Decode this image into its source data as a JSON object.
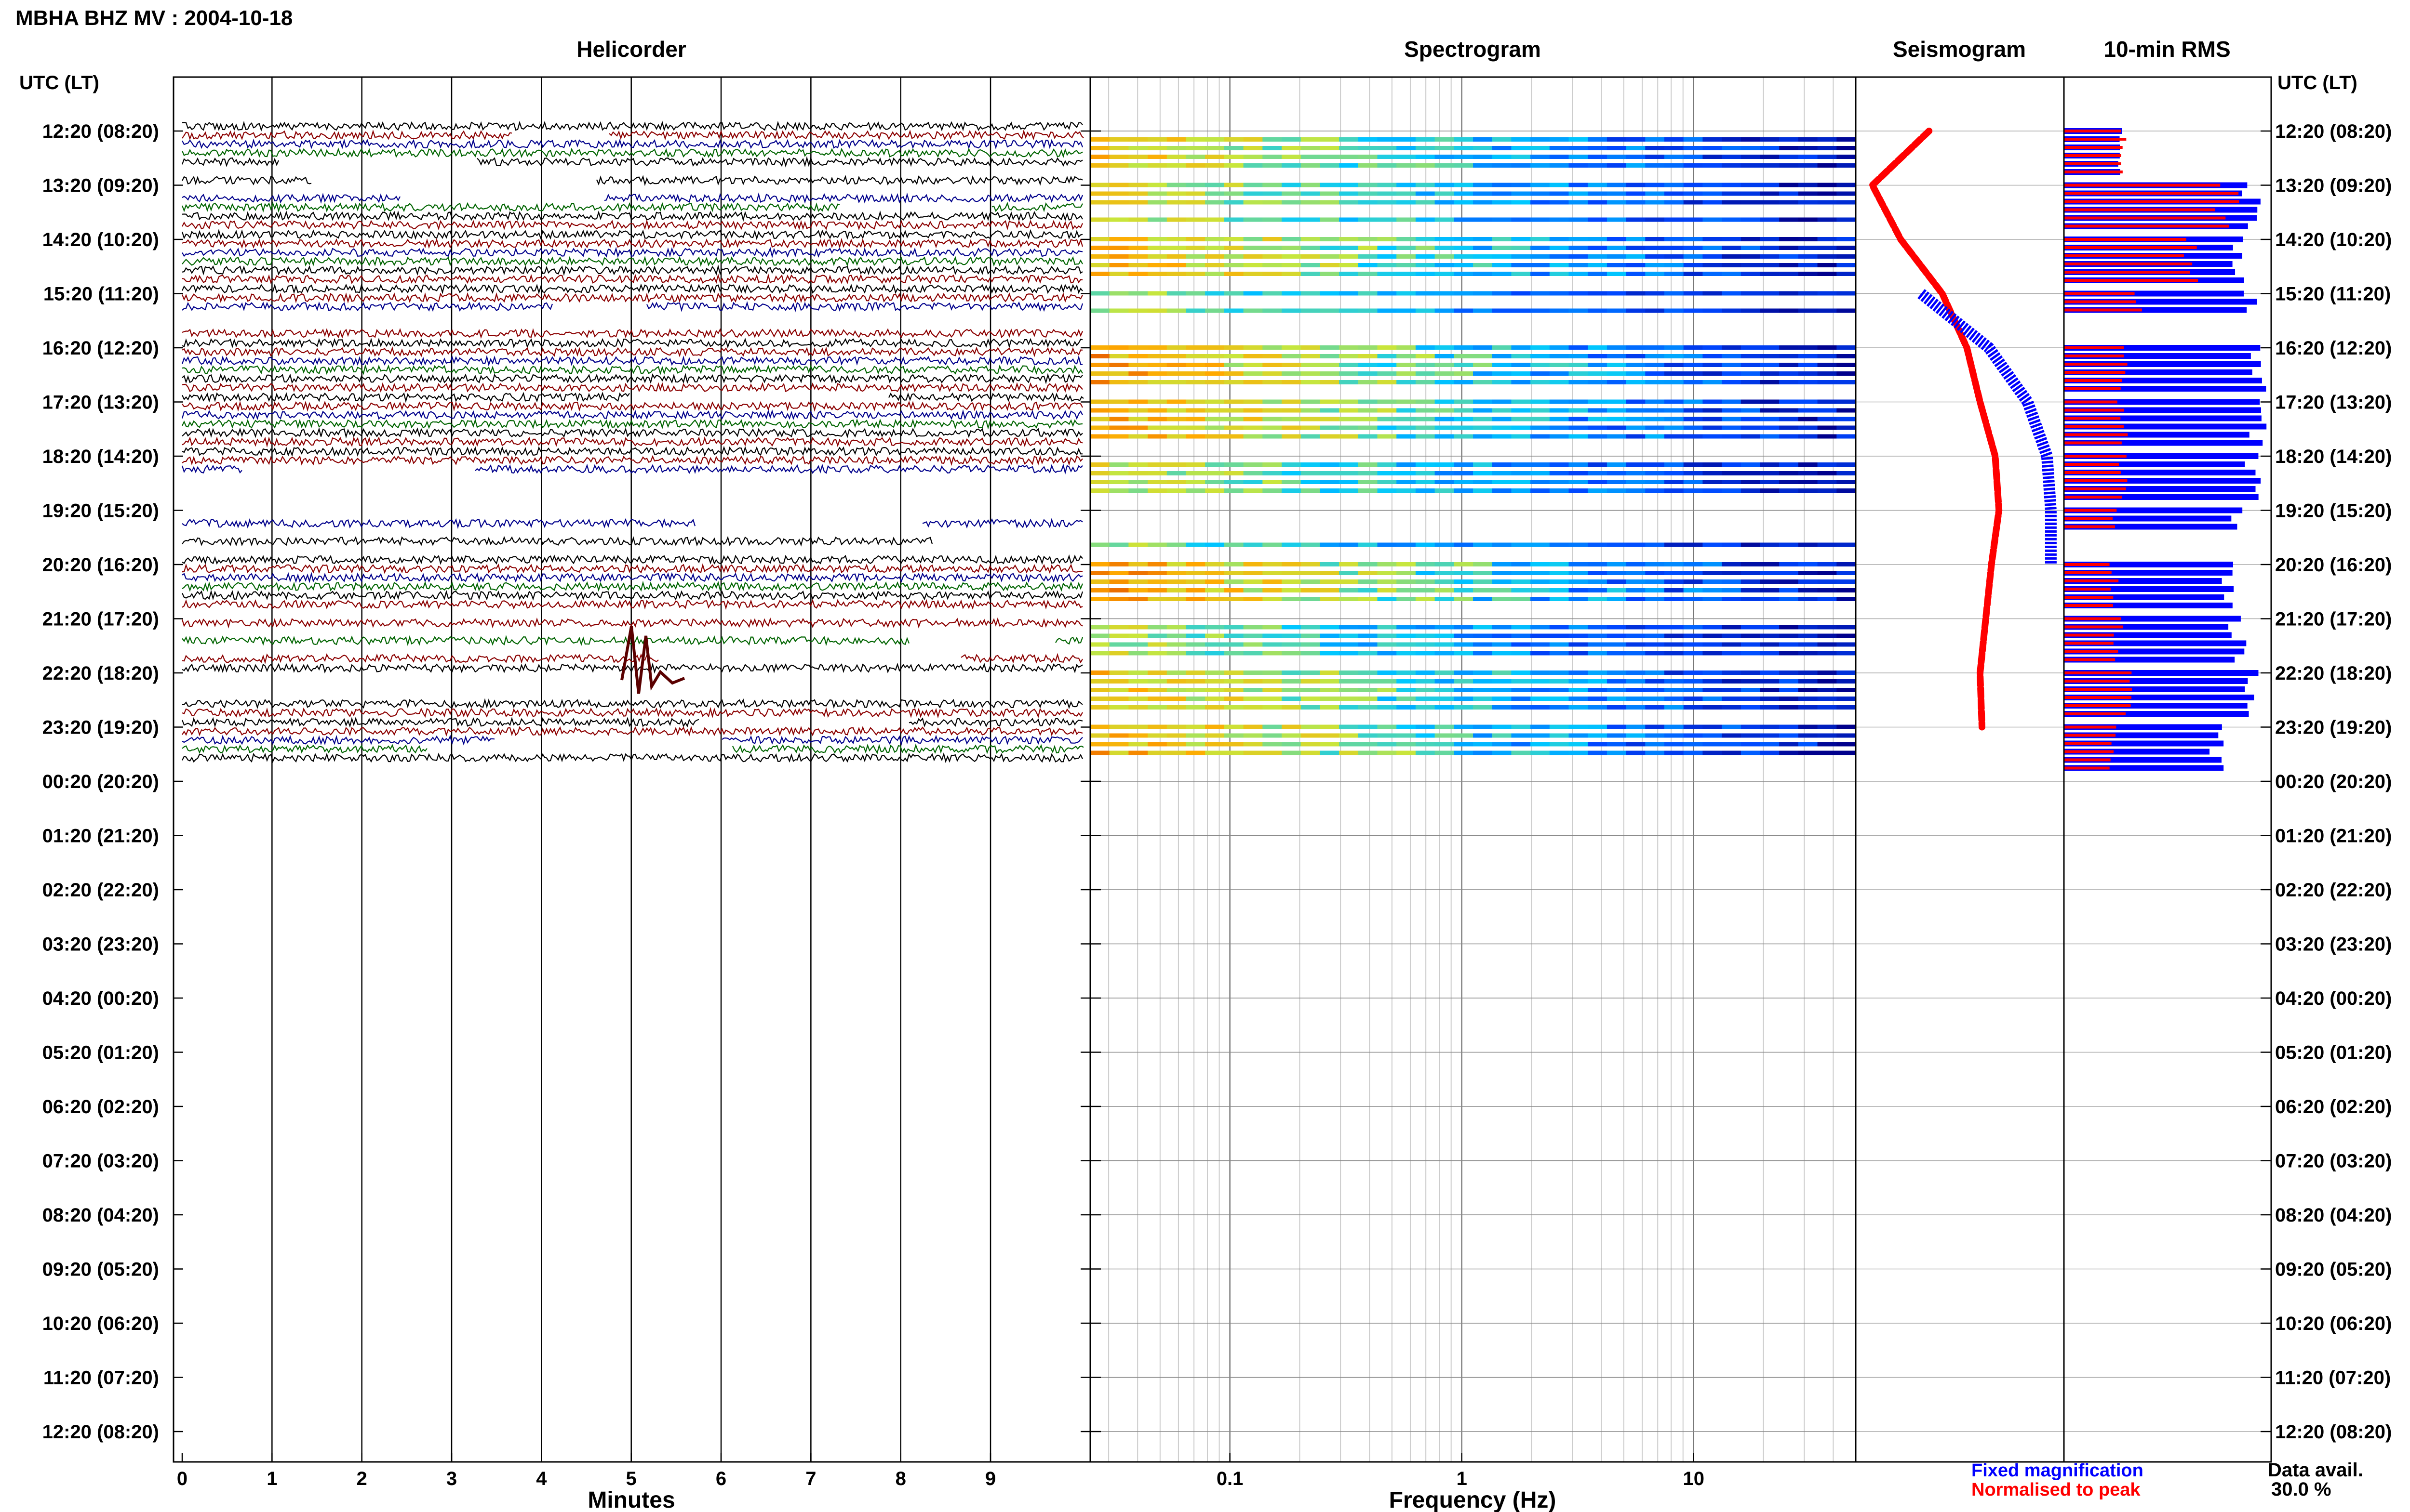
{
  "title": "MBHA BHZ MV : 2004-10-18",
  "panels": {
    "helicorder": "Helicorder",
    "spectrogram": "Spectrogram",
    "seismogram": "Seismogram",
    "rms": "10-min RMS"
  },
  "time_axis": {
    "header": "UTC (LT)",
    "labels": [
      "12:20 (08:20)",
      "13:20 (09:20)",
      "14:20 (10:20)",
      "15:20 (11:20)",
      "16:20 (12:20)",
      "17:20 (13:20)",
      "18:20 (14:20)",
      "19:20 (15:20)",
      "20:20 (16:20)",
      "21:20 (17:20)",
      "22:20 (18:20)",
      "23:20 (19:20)",
      "00:20 (20:20)",
      "01:20 (21:20)",
      "02:20 (22:20)",
      "03:20 (23:20)",
      "04:20 (00:20)",
      "05:20 (01:20)",
      "06:20 (02:20)",
      "07:20 (03:20)",
      "08:20 (04:20)",
      "09:20 (05:20)",
      "10:20 (06:20)",
      "11:20 (07:20)",
      "12:20 (08:20)"
    ]
  },
  "helicorder_axis": {
    "label": "Minutes",
    "ticks": [
      "0",
      "1",
      "2",
      "3",
      "4",
      "5",
      "6",
      "7",
      "8",
      "9"
    ]
  },
  "spectrogram_axis": {
    "label": "Frequency (Hz)",
    "ticks": [
      "0.1",
      "1",
      "10"
    ],
    "scale": "log"
  },
  "legend": {
    "fixed": "Fixed magnification",
    "normalised": "Normalised to peak"
  },
  "data_avail": {
    "label": "Data avail.",
    "value": "30.0 %"
  },
  "colors": {
    "fixed": "#0000ff",
    "normalised": "#ff0000",
    "trace_black": "#000000",
    "trace_red": "#8b0000",
    "trace_blue": "#00008b",
    "trace_green": "#006400"
  },
  "chart_data": {
    "type": "heatmap",
    "title": "MBHA BHZ MV : 2004-10-18",
    "y_hours": [
      "12:20",
      "13:20",
      "14:20",
      "15:20",
      "16:20",
      "17:20",
      "18:20",
      "19:20",
      "20:20",
      "21:20",
      "22:20",
      "23:20"
    ],
    "hourly_activity": [
      0.7,
      0.55,
      0.8,
      0.35,
      0.9,
      0.85,
      0.5,
      0.3,
      0.95,
      0.4,
      0.75,
      0.85
    ],
    "seismogram_norm": [
      0.35,
      0.05,
      0.2,
      0.42,
      0.55,
      0.62,
      0.7,
      0.72,
      0.68,
      0.65,
      0.62,
      0.63
    ],
    "seismogram_fixed": [
      0,
      0,
      0,
      0.3,
      0.65,
      0.85,
      0.95,
      0.97,
      0.97,
      0,
      0,
      0
    ],
    "rms_fixed": [
      0.28,
      0.95,
      0.9,
      0.95,
      0.98,
      0.99,
      0.96,
      0.88,
      0.82,
      0.88,
      0.96,
      0.78
    ],
    "rms_norm": [
      0.28,
      0.8,
      0.6,
      0.35,
      0.28,
      0.28,
      0.28,
      0.26,
      0.24,
      0.26,
      0.3,
      0.24
    ],
    "data_avail_pct": 30.0
  }
}
